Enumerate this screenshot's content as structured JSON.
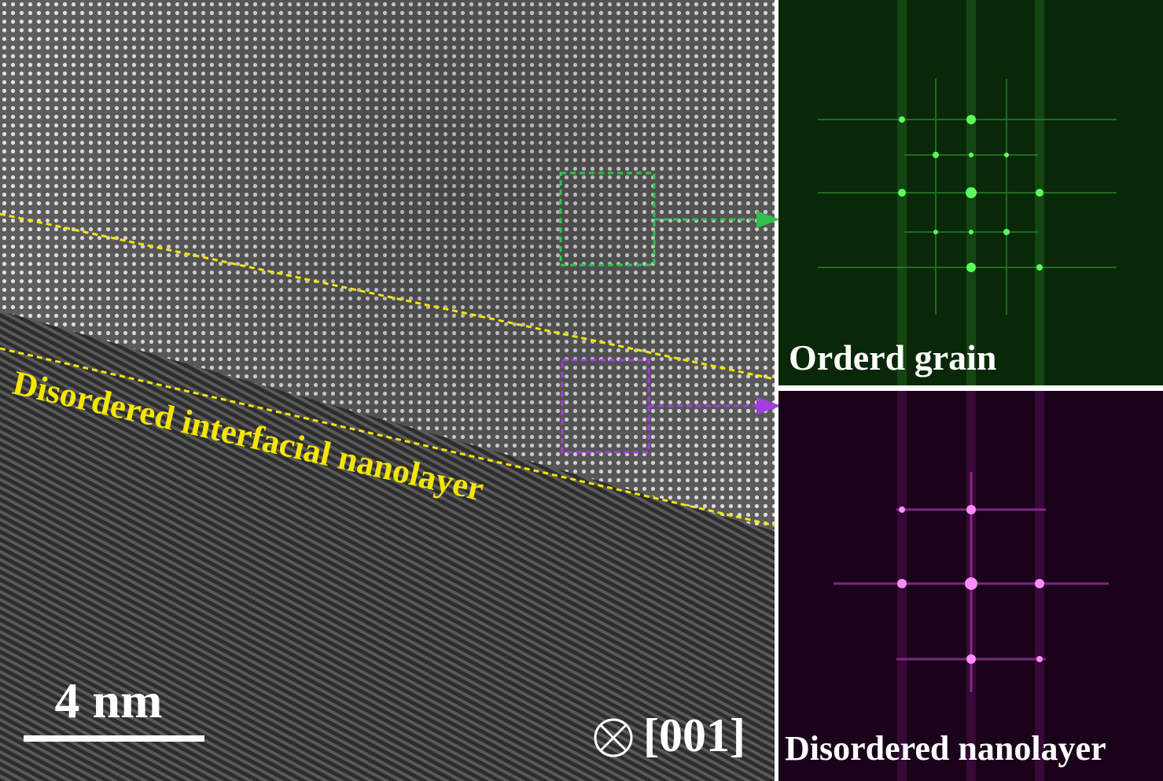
{
  "main_image": {
    "annotation": "Disordered interfacial nanolayer",
    "scale_bar": "4 nm",
    "zone_axis": "[001]"
  },
  "fft_panels": [
    {
      "label": "Orderd grain"
    },
    {
      "label": "Disordered nanolayer"
    }
  ]
}
